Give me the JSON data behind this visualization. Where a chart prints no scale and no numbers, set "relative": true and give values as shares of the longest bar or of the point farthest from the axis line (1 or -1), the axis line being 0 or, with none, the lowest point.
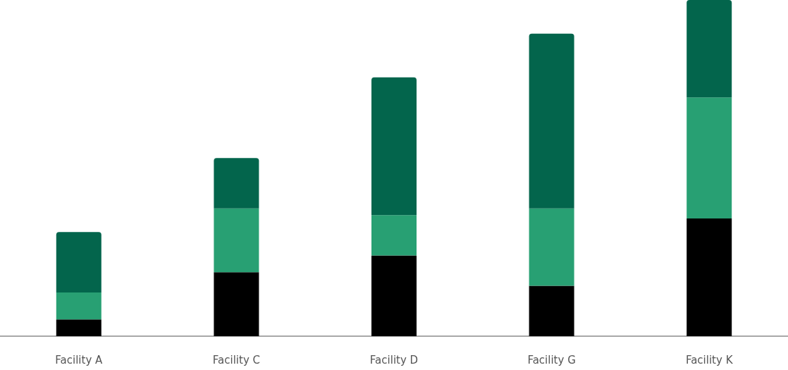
{
  "chart_data": {
    "type": "bar",
    "stacked": true,
    "relative": true,
    "categories": [
      "Facility A",
      "Facility C",
      "Facility D",
      "Facility G",
      "Facility K"
    ],
    "series": [
      {
        "color": "#000000",
        "values": [
          0.05,
          0.19,
          0.24,
          0.15,
          0.35
        ]
      },
      {
        "color": "#28a073",
        "values": [
          0.08,
          0.19,
          0.12,
          0.23,
          0.36
        ]
      },
      {
        "color": "#03654c",
        "values": [
          0.18,
          0.15,
          0.41,
          0.52,
          0.29
        ]
      }
    ]
  }
}
